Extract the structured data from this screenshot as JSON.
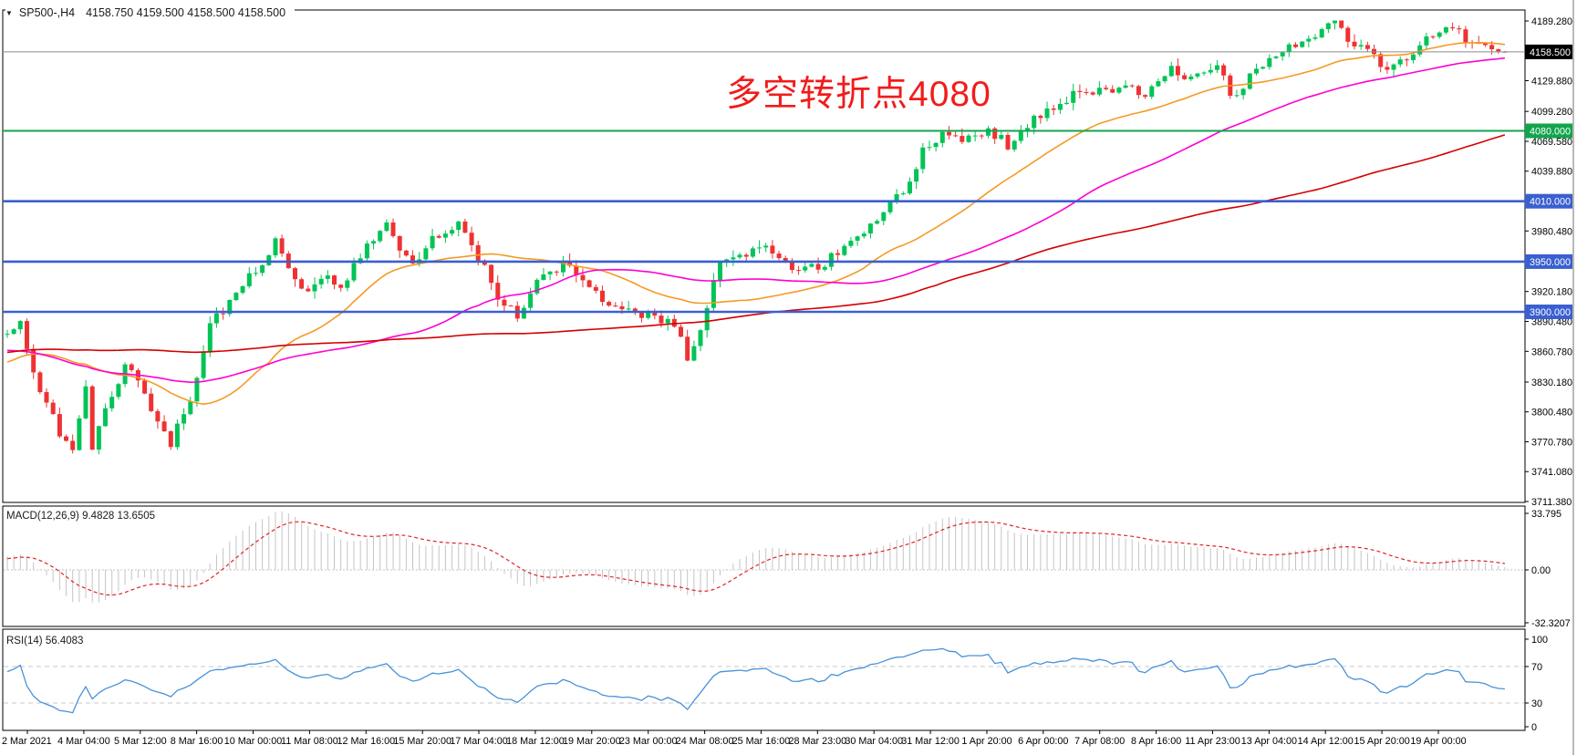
{
  "window": {
    "symbol": "SP500-,H4",
    "ohlc_line": "4158.750 4159.500 4158.500 4158.500"
  },
  "annotation": {
    "text": "多空转折点4080",
    "color": "#F21B1B"
  },
  "colors": {
    "up": "#00C455",
    "down": "#EE3232",
    "ma_fast": "#F59A23",
    "ma_mid": "#FF00D2",
    "ma_slow": "#D40000",
    "level_green": "#12A44C",
    "level_blue": "#3A5FD0",
    "current_line": "#8C8C8C",
    "current_badge": "#000000",
    "macd_hist": "#C4C4C4",
    "macd_signal": "#E02424",
    "rsi_line": "#4792D9",
    "guide": "#C9C9C9"
  },
  "price_axis": {
    "ticks": [
      "4189.280",
      "4129.880",
      "4099.280",
      "4069.580",
      "4039.880",
      "3980.480",
      "3920.180",
      "3890.480",
      "3860.780",
      "3830.180",
      "3800.480",
      "3770.780",
      "3741.080",
      "3711.380"
    ],
    "badges": [
      {
        "label": "4158.500",
        "price": 4158.5,
        "type": "current"
      },
      {
        "label": "4080.000",
        "price": 4080,
        "type": "green"
      },
      {
        "label": "4010.000",
        "price": 4010,
        "type": "blue"
      },
      {
        "label": "3950.000",
        "price": 3950,
        "type": "blue"
      },
      {
        "label": "3900.000",
        "price": 3900,
        "type": "blue"
      }
    ]
  },
  "levels": [
    {
      "price": 4080,
      "color": "green"
    },
    {
      "price": 4010,
      "color": "blue"
    },
    {
      "price": 3950,
      "color": "blue"
    },
    {
      "price": 3900,
      "color": "blue"
    }
  ],
  "current_price": 4158.5,
  "macd_panel": {
    "label": "MACD(12,26,9)",
    "values": "9.4828 13.6505",
    "axis": [
      "33.795",
      "0.00",
      "-32.3207"
    ],
    "axis_values": [
      33.795,
      0,
      -32.3207
    ],
    "params": {
      "fast": 12,
      "slow": 26,
      "signal": 9
    }
  },
  "rsi_panel": {
    "label": "RSI(14)",
    "value": "56.4083",
    "axis": [
      "100",
      "70",
      "30",
      "0"
    ],
    "guides": [
      70,
      30
    ],
    "period": 14
  },
  "time_axis": [
    "2 Mar 2021",
    "4 Mar 04:00",
    "5 Mar 12:00",
    "8 Mar 16:00",
    "10 Mar 00:00",
    "11 Mar 08:00",
    "12 Mar 16:00",
    "15 Mar 20:00",
    "17 Mar 04:00",
    "18 Mar 12:00",
    "19 Mar 20:00",
    "23 Mar 00:00",
    "24 Mar 08:00",
    "25 Mar 16:00",
    "28 Mar 23:00",
    "30 Mar 04:00",
    "31 Mar 12:00",
    "1 Apr 20:00",
    "6 Apr 00:00",
    "7 Apr 08:00",
    "8 Apr 16:00",
    "11 Apr 23:00",
    "13 Apr 04:00",
    "14 Apr 12:00",
    "15 Apr 20:00",
    "19 Apr 00:00"
  ],
  "chart_data": {
    "type": "candlestick",
    "title": "SP500- H4",
    "ylim": [
      3711.38,
      4189.28
    ],
    "visible_bars": 230,
    "warmup_bars": 150,
    "seed": 97,
    "noise": 5.5,
    "last_candle": {
      "open": 4158.75,
      "high": 4159.5,
      "low": 4158.5,
      "close": 4158.5
    },
    "close_path_anchors": [
      [
        -150,
        3735
      ],
      [
        -120,
        3800
      ],
      [
        -95,
        3855
      ],
      [
        -70,
        3925
      ],
      [
        -45,
        3885
      ],
      [
        -25,
        3808
      ],
      [
        -12,
        3862
      ],
      [
        0,
        3880
      ],
      [
        2,
        3888
      ],
      [
        5,
        3820
      ],
      [
        8,
        3780
      ],
      [
        10,
        3758
      ],
      [
        12,
        3830
      ],
      [
        13,
        3762
      ],
      [
        15,
        3805
      ],
      [
        18,
        3848
      ],
      [
        20,
        3836
      ],
      [
        23,
        3792
      ],
      [
        25,
        3770
      ],
      [
        28,
        3815
      ],
      [
        31,
        3885
      ],
      [
        34,
        3912
      ],
      [
        38,
        3942
      ],
      [
        41,
        3968
      ],
      [
        45,
        3918
      ],
      [
        48,
        3938
      ],
      [
        51,
        3922
      ],
      [
        55,
        3965
      ],
      [
        58,
        3987
      ],
      [
        62,
        3945
      ],
      [
        65,
        3975
      ],
      [
        69,
        3988
      ],
      [
        72,
        3955
      ],
      [
        75,
        3915
      ],
      [
        78,
        3896
      ],
      [
        81,
        3928
      ],
      [
        85,
        3950
      ],
      [
        89,
        3928
      ],
      [
        92,
        3908
      ],
      [
        96,
        3902
      ],
      [
        99,
        3893
      ],
      [
        102,
        3888
      ],
      [
        104,
        3856
      ],
      [
        106,
        3885
      ],
      [
        109,
        3952
      ],
      [
        113,
        3958
      ],
      [
        116,
        3968
      ],
      [
        120,
        3938
      ],
      [
        124,
        3944
      ],
      [
        127,
        3958
      ],
      [
        130,
        3978
      ],
      [
        134,
        3998
      ],
      [
        137,
        4022
      ],
      [
        140,
        4058
      ],
      [
        143,
        4078
      ],
      [
        147,
        4072
      ],
      [
        150,
        4082
      ],
      [
        153,
        4066
      ],
      [
        157,
        4090
      ],
      [
        160,
        4106
      ],
      [
        164,
        4120
      ],
      [
        167,
        4118
      ],
      [
        171,
        4128
      ],
      [
        174,
        4114
      ],
      [
        178,
        4140
      ],
      [
        181,
        4134
      ],
      [
        185,
        4148
      ],
      [
        187,
        4112
      ],
      [
        191,
        4140
      ],
      [
        194,
        4154
      ],
      [
        197,
        4168
      ],
      [
        201,
        4180
      ],
      [
        203,
        4186
      ],
      [
        205,
        4172
      ],
      [
        208,
        4160
      ],
      [
        211,
        4142
      ],
      [
        215,
        4160
      ],
      [
        218,
        4178
      ],
      [
        221,
        4180
      ],
      [
        223,
        4172
      ],
      [
        225,
        4165
      ],
      [
        228,
        4155
      ],
      [
        229,
        4158.5
      ]
    ],
    "moving_averages": [
      {
        "name": "ma-fast",
        "period": 28,
        "color_key": "ma_fast"
      },
      {
        "name": "ma-mid",
        "period": 60,
        "color_key": "ma_mid"
      },
      {
        "name": "ma-slow",
        "period": 130,
        "color_key": "ma_slow"
      }
    ]
  }
}
